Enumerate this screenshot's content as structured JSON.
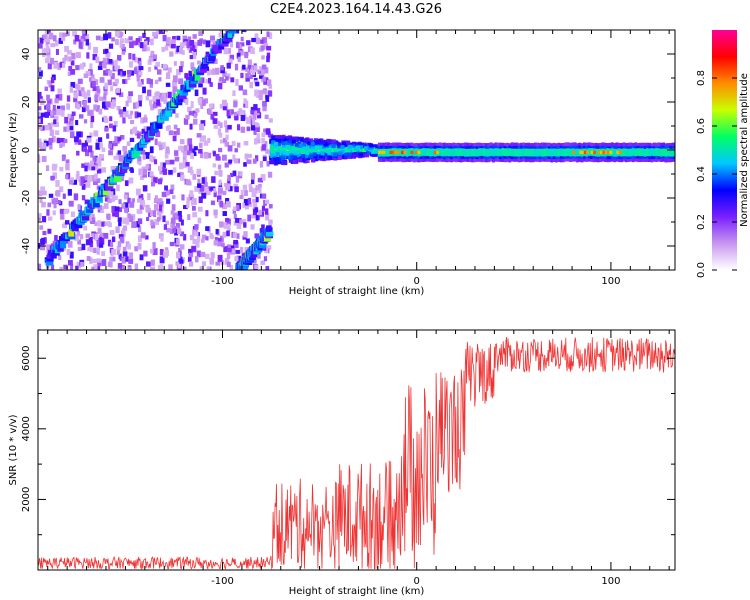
{
  "title": "C2E4.2023.164.14.43.G26",
  "chart_data": [
    {
      "type": "heatmap",
      "xlabel": "Height of straight line (km)",
      "ylabel": "Frequency (Hz)",
      "xlim": [
        -195,
        133
      ],
      "ylim": [
        -50,
        50
      ],
      "xticks": [
        -100,
        0,
        100
      ],
      "yticks": [
        -40,
        -20,
        0,
        20,
        40
      ],
      "colorbar": {
        "label": "Normalized spectral amplitude",
        "range": [
          0,
          1
        ],
        "ticks": [
          0.0,
          0.2,
          0.4,
          0.6,
          0.8
        ],
        "colors": [
          "#ffffff",
          "#c896f0",
          "#7a1fff",
          "#0000ff",
          "#00c8ff",
          "#00ff64",
          "#c8ff00",
          "#ff8c00",
          "#ff0000",
          "#ff0096"
        ]
      },
      "features": [
        {
          "name": "dispersed",
          "from": [
            -190,
            -46
          ],
          "to": [
            -95,
            50
          ]
        },
        {
          "name": "dispersed",
          "from": [
            -92,
            -50
          ],
          "to": [
            -76,
            -34
          ]
        },
        {
          "name": "noise",
          "xrange": [
            -195,
            -75
          ],
          "yrange": [
            -50,
            50
          ]
        },
        {
          "name": "spread",
          "from": [
            -75,
            0
          ],
          "to": [
            -20,
            0
          ],
          "width_hz": [
            12,
            4
          ]
        },
        {
          "name": "tone",
          "from": [
            -20,
            -1
          ],
          "to": [
            133,
            -1
          ],
          "peak_ranges": [
            [
              -20,
              10
            ],
            [
              80,
              105
            ]
          ]
        }
      ]
    },
    {
      "type": "line",
      "xlabel": "Height of straight line (km)",
      "ylabel": "SNR (10 * v/v)",
      "xlim": [
        -195,
        133
      ],
      "ylim": [
        0,
        6800
      ],
      "xticks": [
        -100,
        0,
        100
      ],
      "yticks": [
        2000,
        4000,
        6000
      ],
      "line_color": "#f03232",
      "segments": [
        {
          "x": [
            -195,
            -75
          ],
          "level": 200,
          "noise": 170
        },
        {
          "x": [
            -75,
            -40
          ],
          "level": 1300,
          "noise": 1300
        },
        {
          "x": [
            -40,
            -10
          ],
          "level": 1500,
          "noise": 1600
        },
        {
          "x": [
            -10,
            10
          ],
          "level": 2800,
          "noise": 2600
        },
        {
          "x": [
            10,
            25
          ],
          "level": 4000,
          "noise": 1800
        },
        {
          "x": [
            25,
            40
          ],
          "level": 5600,
          "noise": 900
        },
        {
          "x": [
            40,
            133
          ],
          "level": 6100,
          "noise": 500
        }
      ]
    }
  ]
}
